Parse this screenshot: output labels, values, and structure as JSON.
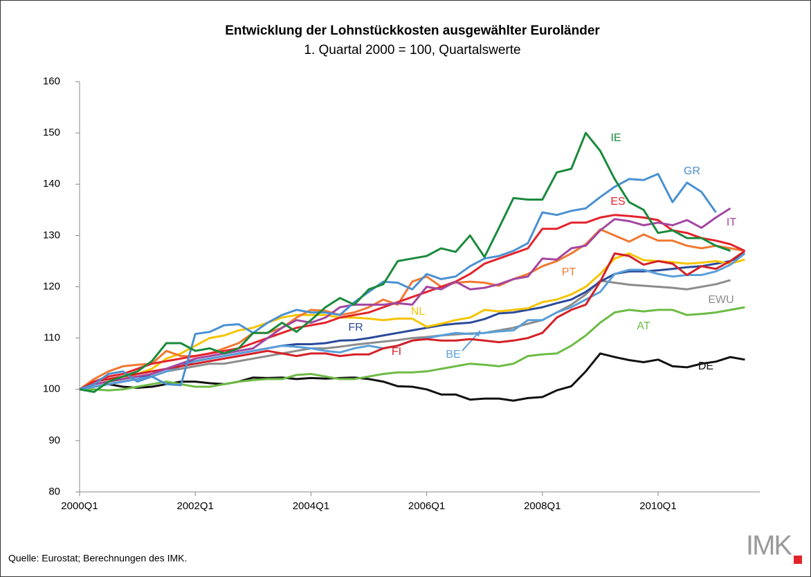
{
  "chart_data": {
    "type": "line",
    "title": "Entwicklung der Lohnstückkosten ausgewählter Euroländer",
    "subtitle": "1. Quartal 2000 = 100, Quartalswerte",
    "source": "Quelle: Eurostat; Berechnungen des IMK.",
    "logo": "IMK",
    "categories": [
      "2000Q1",
      null,
      null,
      null,
      null,
      null,
      null,
      null,
      "2002Q1",
      null,
      null,
      null,
      null,
      null,
      null,
      null,
      "2004Q1",
      null,
      null,
      null,
      null,
      null,
      null,
      null,
      "2006Q1",
      null,
      null,
      null,
      null,
      null,
      null,
      null,
      "2008Q1",
      null,
      null,
      null,
      null,
      null,
      null,
      null,
      "2010Q1",
      null,
      null,
      null,
      null,
      null,
      null
    ],
    "ylim": [
      80,
      160
    ],
    "yticks": [
      80,
      90,
      100,
      110,
      120,
      130,
      140,
      150,
      160
    ],
    "grid": false,
    "series": [
      {
        "name": "DE",
        "color": "#111111",
        "values": [
          100,
          100.5,
          101,
          100.5,
          100.3,
          100.5,
          101,
          101.5,
          101.5,
          101.2,
          101,
          101.5,
          102.3,
          102.2,
          102.3,
          102,
          102.2,
          102.1,
          102.2,
          102.3,
          102,
          101.5,
          100.6,
          100.5,
          100,
          99,
          99,
          98,
          98.2,
          98.2,
          97.8,
          98.3,
          98.5,
          99.8,
          100.6,
          103.5,
          107,
          106.3,
          105.7,
          105.3,
          105.8,
          104.5,
          104.3,
          105,
          105.4,
          106.3,
          105.8
        ]
      },
      {
        "name": "AT",
        "color": "#6dbb45",
        "values": [
          100,
          100,
          99.8,
          100,
          100.5,
          101,
          101.5,
          101,
          100.5,
          100.5,
          101,
          101.5,
          101.8,
          102,
          102,
          102.8,
          103,
          102.5,
          102,
          102,
          102.5,
          103,
          103.3,
          103.3,
          103.5,
          104,
          104.5,
          105,
          104.8,
          104.5,
          105,
          106.5,
          106.8,
          107,
          108.5,
          110.5,
          113,
          115,
          115.5,
          115.2,
          115.5,
          115.5,
          114.5,
          114.7,
          115,
          115.5,
          116
        ]
      },
      {
        "name": "EWU",
        "color": "#8c8c8c",
        "values": [
          100,
          100.5,
          101,
          101.5,
          102,
          102.5,
          103.5,
          104,
          104.5,
          105,
          105,
          105.5,
          106,
          106.5,
          107,
          107.5,
          108,
          108,
          108.3,
          108.7,
          109,
          109.3,
          109.6,
          110,
          110.2,
          110.5,
          110.7,
          110.9,
          111,
          111.5,
          112,
          112.8,
          113.5,
          115,
          116.5,
          118.5,
          121.2,
          120.8,
          120.4,
          120.2,
          120,
          119.8,
          119.5,
          120,
          120.5,
          121.3,
          null
        ]
      },
      {
        "name": "FR",
        "color": "#2a4a9a",
        "values": [
          100,
          100.5,
          101,
          101.5,
          102,
          103,
          104,
          105,
          105.5,
          106,
          106.5,
          107,
          107.5,
          108,
          108.5,
          108.8,
          108.8,
          109,
          109.5,
          109.6,
          110,
          110.5,
          111,
          111.5,
          112,
          112.5,
          112.8,
          113,
          113.7,
          114.8,
          115,
          115.5,
          116,
          116.8,
          117.5,
          119,
          121,
          122.5,
          123,
          123,
          123.2,
          123.5,
          123.8,
          124,
          124.5,
          125,
          126.5
        ]
      },
      {
        "name": "NL",
        "color": "#f5c400",
        "values": [
          100,
          101,
          101.5,
          102,
          103,
          104,
          106,
          107,
          108.5,
          110,
          110.5,
          111.5,
          112,
          113,
          114,
          114.5,
          114.5,
          114.5,
          114,
          114,
          113.8,
          113.5,
          113.8,
          113.8,
          112.2,
          112.8,
          113.5,
          114,
          115.5,
          115.2,
          115.5,
          115.8,
          117,
          117.5,
          118.5,
          120,
          122.5,
          125.5,
          126.5,
          125.2,
          125,
          124.8,
          124.5,
          124.7,
          125,
          124.5,
          125.3
        ]
      },
      {
        "name": "BE",
        "color": "#5a9fd8",
        "values": [
          100,
          100.5,
          101,
          101.5,
          102,
          102.5,
          103.5,
          104.5,
          105.5,
          106,
          106.5,
          107,
          107.5,
          108,
          108.5,
          108.3,
          108,
          107.5,
          107.2,
          108,
          108.5,
          108,
          108.5,
          109.5,
          110,
          110.5,
          111,
          110.8,
          111,
          111.3,
          111.5,
          113.5,
          113.5,
          115,
          116,
          117.5,
          119,
          122.5,
          123.3,
          123.3,
          122.5,
          122,
          122.3,
          122.3,
          123,
          124.3,
          126.5
        ]
      },
      {
        "name": "FI",
        "color": "#d42027",
        "values": [
          100,
          101.5,
          102,
          102.5,
          103,
          103.5,
          104,
          104.5,
          105,
          105.5,
          106,
          106.5,
          107,
          107.5,
          107,
          106.5,
          107,
          107,
          106.5,
          106.8,
          106.8,
          108,
          108.5,
          109.5,
          109.8,
          109.5,
          109.5,
          109.8,
          109.5,
          109.2,
          109.5,
          110,
          111,
          114,
          115.5,
          116.5,
          121,
          126.5,
          126,
          124.3,
          125,
          124.5,
          122.3,
          124,
          123.5,
          125,
          127
        ]
      },
      {
        "name": "PT",
        "color": "#f07830",
        "values": [
          100,
          102,
          103.5,
          104.5,
          104.8,
          105,
          107.5,
          106.5,
          106.5,
          107,
          108,
          109,
          111,
          111,
          112,
          114,
          115.5,
          115.3,
          114.5,
          115,
          116,
          117.5,
          116.5,
          121,
          122,
          120,
          120.8,
          121,
          120.8,
          120.2,
          121.5,
          122.5,
          124,
          125,
          126.5,
          128.3,
          131.2,
          130,
          128.8,
          130.2,
          129,
          129,
          128,
          127.5,
          128,
          127.5,
          127
        ]
      },
      {
        "name": "ES",
        "color": "#e3232b",
        "values": [
          100,
          101.5,
          102.5,
          103,
          104,
          105,
          105.5,
          106,
          106.5,
          107,
          107.5,
          108,
          109,
          110,
          111,
          112,
          112.5,
          113,
          114,
          114.5,
          115,
          116,
          117,
          118,
          119,
          120,
          121,
          122.5,
          124.5,
          125.5,
          126.5,
          127.5,
          131.3,
          131.3,
          132.5,
          132.5,
          133.5,
          134,
          133.8,
          133.5,
          133,
          131,
          130.5,
          129.5,
          129,
          128.3,
          127
        ]
      },
      {
        "name": "IT",
        "color": "#a346a0",
        "values": [
          100,
          101,
          101.5,
          102,
          102.5,
          103,
          104,
          105,
          106,
          106.5,
          107,
          107.5,
          108,
          110,
          112,
          113.5,
          113,
          114,
          116,
          116.5,
          116.5,
          116.5,
          116.8,
          116.5,
          120,
          119.5,
          121,
          119.5,
          119.8,
          120.5,
          121.5,
          122,
          125.5,
          125.3,
          127.5,
          128,
          131,
          133.2,
          132.8,
          132,
          132.5,
          132,
          133,
          131.5,
          133.5,
          135.3,
          null
        ]
      },
      {
        "name": "GR",
        "color": "#4a90d0",
        "values": [
          100,
          101,
          103,
          103.5,
          101.5,
          102.5,
          101,
          100.8,
          110.8,
          111.2,
          112.5,
          112.7,
          111,
          113,
          114.5,
          115.5,
          115,
          115,
          114.5,
          117,
          119,
          121,
          120.8,
          119.5,
          122.5,
          121.5,
          122,
          124,
          125.5,
          126,
          127,
          128.5,
          134.5,
          134,
          134.8,
          135.3,
          137.5,
          139.5,
          141,
          140.8,
          142,
          136.5,
          140.3,
          138.5,
          134.5,
          null,
          null
        ]
      },
      {
        "name": "IE",
        "color": "#1a8a3c",
        "values": [
          100,
          99.5,
          101.5,
          102.5,
          103.5,
          105.5,
          109,
          109,
          107.5,
          108,
          107,
          108,
          111,
          111,
          113,
          111.2,
          113.5,
          116,
          117.8,
          116.5,
          119.5,
          120.5,
          125,
          125.5,
          126,
          127.5,
          126.8,
          130,
          125.8,
          131.5,
          137.3,
          137,
          137,
          142.3,
          143,
          150,
          146.5,
          141,
          136.5,
          135,
          130.5,
          131,
          129.5,
          129.5,
          128,
          127,
          null
        ]
      }
    ]
  }
}
